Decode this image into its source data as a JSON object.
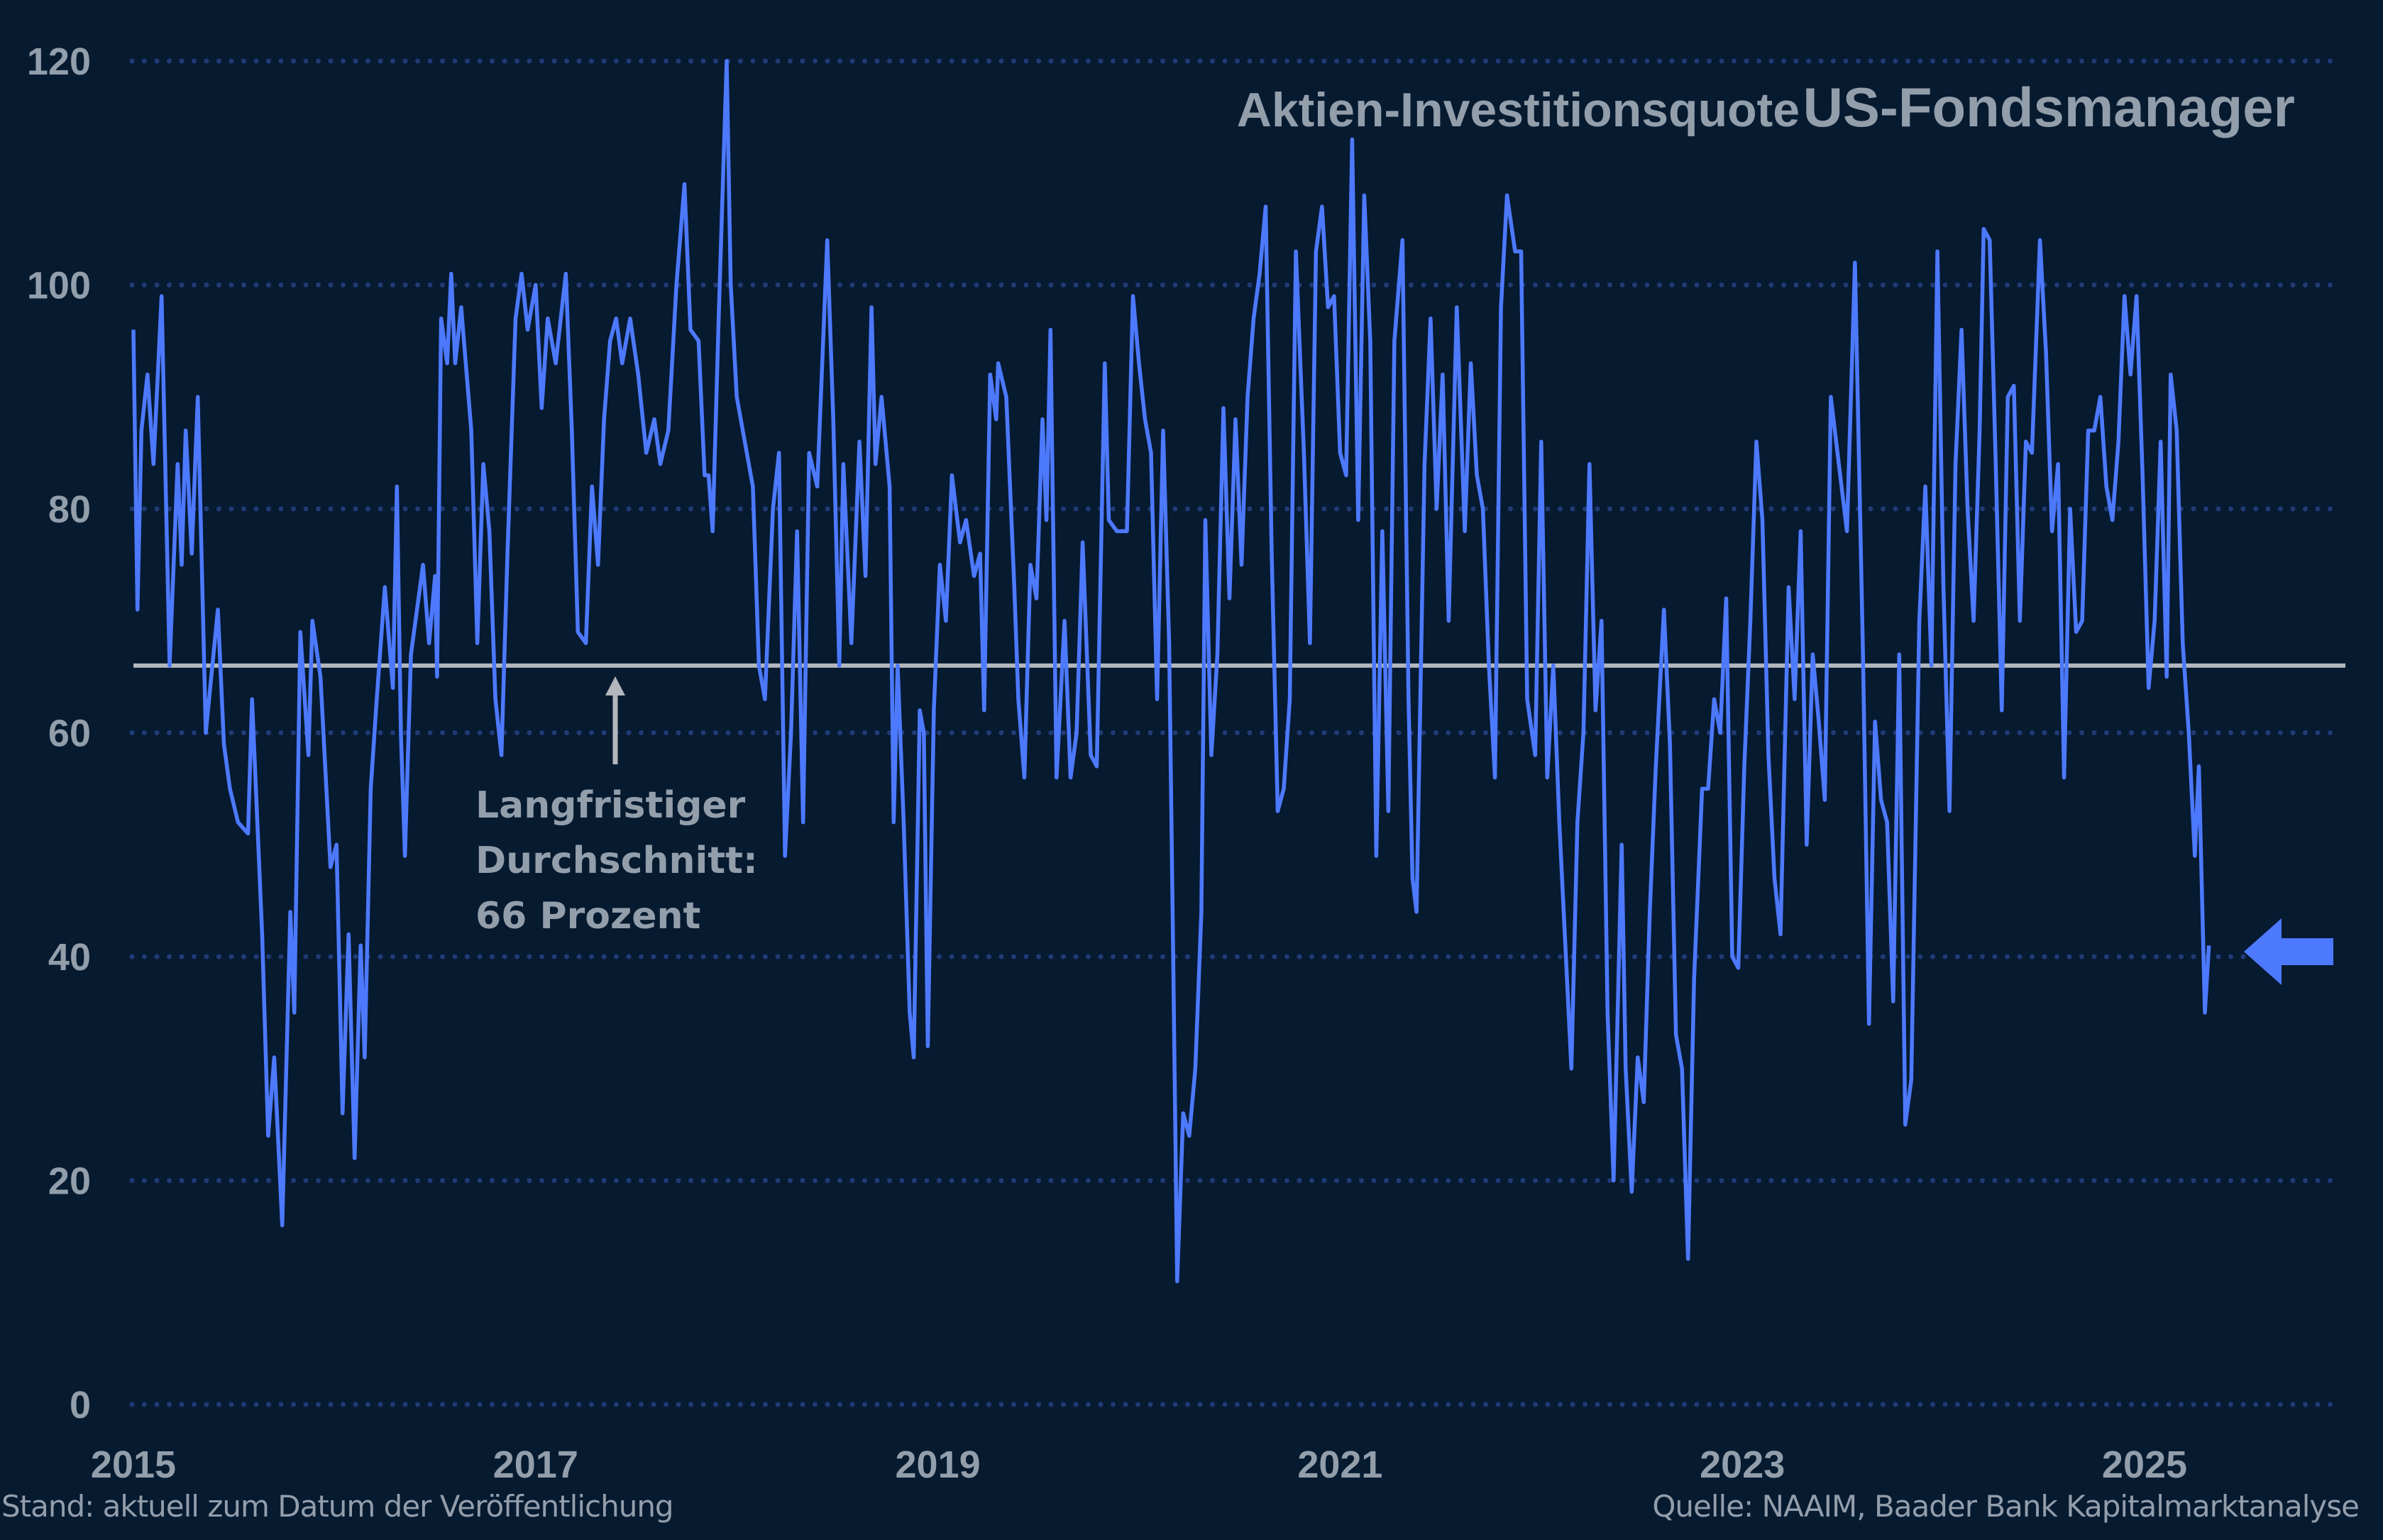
{
  "chart_data": {
    "type": "line",
    "title_part1": "Aktien-Investitionsquote",
    "title_part2": "US-Fondsmanager",
    "xlabel": "",
    "ylabel": "",
    "xlim": [
      2015,
      2026
    ],
    "ylim": [
      0,
      120
    ],
    "x_ticks": [
      "2015",
      "2017",
      "2019",
      "2021",
      "2023",
      "2025"
    ],
    "y_ticks": [
      "0",
      "20",
      "40",
      "60",
      "80",
      "100",
      "120"
    ],
    "grid": "horizontal dotted",
    "series_color": "#4d79ff",
    "average": {
      "value": 66,
      "color": "#b3b7bc",
      "label_lines": [
        "Langfristiger",
        "Durchschnitt:",
        "66 Prozent"
      ]
    },
    "marker_arrow": {
      "direction": "left",
      "value": 40,
      "color": "#4d79ff"
    },
    "x": [
      2015.0,
      2015.02,
      2015.04,
      2015.07,
      2015.1,
      2015.14,
      2015.18,
      2015.22,
      2015.24,
      2015.26,
      2015.29,
      2015.32,
      2015.36,
      2015.42,
      2015.45,
      2015.48,
      2015.52,
      2015.57,
      2015.59,
      2015.64,
      2015.67,
      2015.7,
      2015.74,
      2015.78,
      2015.8,
      2015.83,
      2015.87,
      2015.89,
      2015.93,
      2015.98,
      2016.01,
      2016.04,
      2016.07,
      2016.1,
      2016.13,
      2016.15,
      2016.18,
      2016.21,
      2016.25,
      2016.29,
      2016.31,
      2016.33,
      2016.35,
      2016.38,
      2016.44,
      2016.47,
      2016.5,
      2016.51,
      2016.53,
      2016.56,
      2016.58,
      2016.6,
      2016.63,
      2016.68,
      2016.71,
      2016.74,
      2016.77,
      2016.8,
      2016.83,
      2016.86,
      2016.9,
      2016.93,
      2016.96,
      2017.0,
      2017.03,
      2017.06,
      2017.1,
      2017.15,
      2017.18,
      2017.21,
      2017.25,
      2017.28,
      2017.31,
      2017.34,
      2017.37,
      2017.4,
      2017.43,
      2017.47,
      2017.51,
      2017.55,
      2017.59,
      2017.62,
      2017.66,
      2017.7,
      2017.74,
      2017.77,
      2017.81,
      2017.84,
      2017.86,
      2017.88,
      2017.91,
      2017.95,
      2017.97,
      2018.0,
      2018.04,
      2018.08,
      2018.11,
      2018.14,
      2018.18,
      2018.21,
      2018.24,
      2018.27,
      2018.3,
      2018.33,
      2018.36,
      2018.4,
      2018.45,
      2018.48,
      2018.51,
      2018.53,
      2018.57,
      2018.61,
      2018.64,
      2018.67,
      2018.69,
      2018.72,
      2018.76,
      2018.78,
      2018.8,
      2018.83,
      2018.86,
      2018.88,
      2018.91,
      2018.93,
      2018.95,
      2018.98,
      2019.01,
      2019.04,
      2019.07,
      2019.11,
      2019.14,
      2019.18,
      2019.21,
      2019.23,
      2019.26,
      2019.29,
      2019.3,
      2019.34,
      2019.38,
      2019.4,
      2019.43,
      2019.46,
      2019.49,
      2019.52,
      2019.54,
      2019.56,
      2019.59,
      2019.63,
      2019.66,
      2019.69,
      2019.72,
      2019.76,
      2019.79,
      2019.83,
      2019.85,
      2019.89,
      2019.94,
      2019.97,
      2020.0,
      2020.03,
      2020.06,
      2020.09,
      2020.12,
      2020.15,
      2020.17,
      2020.19,
      2020.22,
      2020.25,
      2020.28,
      2020.31,
      2020.33,
      2020.36,
      2020.39,
      2020.42,
      2020.45,
      2020.48,
      2020.51,
      2020.54,
      2020.57,
      2020.6,
      2020.63,
      2020.66,
      2020.69,
      2020.72,
      2020.75,
      2020.78,
      2020.82,
      2020.85,
      2020.88,
      2020.91,
      2020.94,
      2020.97,
      2021.0,
      2021.03,
      2021.06,
      2021.09,
      2021.12,
      2021.15,
      2021.18,
      2021.21,
      2021.24,
      2021.27,
      2021.31,
      2021.34,
      2021.36,
      2021.38,
      2021.42,
      2021.45,
      2021.48,
      2021.51,
      2021.54,
      2021.58,
      2021.62,
      2021.65,
      2021.68,
      2021.71,
      2021.74,
      2021.77,
      2021.8,
      2021.83,
      2021.87,
      2021.9,
      2021.93,
      2021.97,
      2022.0,
      2022.03,
      2022.06,
      2022.09,
      2022.12,
      2022.15,
      2022.18,
      2022.21,
      2022.24,
      2022.27,
      2022.3,
      2022.33,
      2022.36,
      2022.4,
      2022.42,
      2022.45,
      2022.48,
      2022.51,
      2022.54,
      2022.57,
      2022.61,
      2022.64,
      2022.67,
      2022.7,
      2022.73,
      2022.76,
      2022.8,
      2022.83,
      2022.86,
      2022.89,
      2022.92,
      2022.95,
      2022.98,
      2023.01,
      2023.04,
      2023.07,
      2023.1,
      2023.13,
      2023.16,
      2023.19,
      2023.23,
      2023.26,
      2023.29,
      2023.32,
      2023.35,
      2023.38,
      2023.41,
      2023.44,
      2023.48,
      2023.52,
      2023.56,
      2023.6,
      2023.63,
      2023.66,
      2023.69,
      2023.72,
      2023.75,
      2023.78,
      2023.81,
      2023.84,
      2023.88,
      2023.91,
      2023.94,
      2023.97,
      2024.0,
      2024.03,
      2024.06,
      2024.09,
      2024.12,
      2024.15,
      2024.18,
      2024.2,
      2024.23,
      2024.26,
      2024.29,
      2024.32,
      2024.35,
      2024.38,
      2024.41,
      2024.44,
      2024.48,
      2024.51,
      2024.54,
      2024.57,
      2024.6,
      2024.63,
      2024.66,
      2024.69,
      2024.72,
      2024.75,
      2024.78,
      2024.81,
      2024.84,
      2024.87,
      2024.9,
      2024.93,
      2024.96,
      2024.99,
      2025.02,
      2025.05,
      2025.08,
      2025.11,
      2025.13,
      2025.16,
      2025.19,
      2025.22,
      2025.25,
      2025.27,
      2025.3,
      2025.32
    ],
    "y": [
      96,
      71,
      87,
      92,
      84,
      99,
      66,
      84,
      75,
      87,
      76,
      90,
      60,
      71,
      59,
      55,
      52,
      51,
      63,
      42,
      24,
      31,
      16,
      44,
      35,
      69,
      58,
      70,
      65,
      48,
      50,
      26,
      42,
      22,
      41,
      31,
      55,
      63,
      73,
      64,
      82,
      60,
      49,
      67,
      75,
      68,
      74,
      65,
      97,
      93,
      101,
      93,
      98,
      87,
      68,
      84,
      78,
      63,
      58,
      76,
      97,
      101,
      96,
      100,
      89,
      97,
      93,
      101,
      87,
      69,
      68,
      82,
      75,
      88,
      95,
      97,
      93,
      97,
      92,
      85,
      88,
      84,
      87,
      100,
      109,
      96,
      95,
      83,
      83,
      78,
      97,
      120,
      100,
      90,
      86,
      82,
      66,
      63,
      80,
      85,
      49,
      60,
      78,
      52,
      85,
      82,
      104,
      88,
      66,
      84,
      68,
      86,
      74,
      98,
      84,
      90,
      82,
      52,
      66,
      52,
      35,
      31,
      62,
      60,
      32,
      62,
      75,
      70,
      83,
      77,
      79,
      74,
      76,
      62,
      92,
      88,
      93,
      90,
      73,
      63,
      56,
      75,
      72,
      88,
      79,
      96,
      56,
      70,
      56,
      60,
      77,
      58,
      57,
      93,
      79,
      78,
      78,
      99,
      93,
      88,
      85,
      63,
      87,
      68,
      40,
      11,
      26,
      24,
      30,
      44,
      79,
      58,
      67,
      89,
      72,
      88,
      75,
      90,
      97,
      101,
      107,
      76,
      53,
      55,
      63,
      103,
      85,
      68,
      103,
      107,
      98,
      99,
      85,
      83,
      113,
      79,
      108,
      95,
      49,
      78,
      53,
      95,
      104,
      63,
      47,
      44,
      84,
      97,
      80,
      92,
      70,
      98,
      78,
      93,
      83,
      80,
      66,
      56,
      98,
      108,
      103,
      103,
      63,
      58,
      86,
      56,
      66,
      52,
      41,
      30,
      52,
      60,
      84,
      62,
      70,
      35,
      20,
      50,
      30,
      19,
      31,
      27,
      44,
      57,
      71,
      59,
      33,
      30,
      13,
      38,
      55,
      55,
      63,
      60,
      72,
      40,
      39,
      57,
      70,
      86,
      79,
      58,
      47,
      42,
      73,
      63,
      78,
      50,
      67,
      61,
      54,
      90,
      84,
      78,
      102,
      67,
      34,
      61,
      54,
      52,
      36,
      67,
      25,
      29,
      70,
      82,
      66,
      103,
      73,
      53,
      84,
      96,
      80,
      70,
      87,
      105,
      104,
      84,
      62,
      90,
      91,
      70,
      86,
      85,
      104,
      94,
      78,
      84,
      56,
      80,
      69,
      70,
      87,
      87,
      90,
      82,
      79,
      86,
      99,
      92,
      99,
      83,
      64,
      70,
      86,
      65,
      92,
      87,
      68,
      60,
      49,
      57,
      35,
      41
    ]
  },
  "footer": {
    "left": "Stand: aktuell zum Datum der Veröffentlichung",
    "right": "Quelle: NAAIM, Baader Bank Kapitalmarktanalyse"
  },
  "colors": {
    "background": "#061a30",
    "text": "#939eab",
    "grid": "#1f3b75"
  }
}
